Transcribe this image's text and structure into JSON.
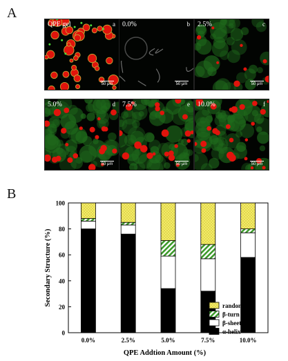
{
  "panels": {
    "top": "A",
    "bottom": "B"
  },
  "micrographs": [
    {
      "label": "QPE gel",
      "tag": "a",
      "scale": "50 μm",
      "kind": "gel"
    },
    {
      "label": "0.0%",
      "tag": "b",
      "scale": "50 μm",
      "kind": "dark"
    },
    {
      "label": "2.5%",
      "tag": "c",
      "scale": "50 μm",
      "kind": "green-sparse"
    },
    {
      "label": "5.0%",
      "tag": "d",
      "scale": "50 μm",
      "kind": "mix"
    },
    {
      "label": "7.5%",
      "tag": "e",
      "scale": "50 μm",
      "kind": "mix"
    },
    {
      "label": "10.0%",
      "tag": "f",
      "scale": "50 μm",
      "kind": "mix-dense"
    }
  ],
  "chart_data": {
    "type": "bar",
    "stacked": true,
    "categories": [
      "0.0%",
      "2.5%",
      "5.0%",
      "7.5%",
      "10.0%"
    ],
    "xlabel": "QPE Addtion Amount (%)",
    "ylabel": "Secondary Structure (%)",
    "ylim": [
      0,
      100
    ],
    "yticks": [
      0,
      20,
      40,
      60,
      80,
      100
    ],
    "legend_position": "bottom-right",
    "series": [
      {
        "name": "α-helix",
        "values": [
          80,
          76,
          34,
          32,
          58
        ],
        "color": "#000000"
      },
      {
        "name": "β-sheet",
        "values": [
          6,
          7,
          25,
          25,
          19
        ],
        "color": "#ffffff"
      },
      {
        "name": "β-turn",
        "values": [
          2,
          2,
          12,
          11,
          3
        ],
        "color": "#6abf3a",
        "pattern": "hatch"
      },
      {
        "name": "random coil",
        "values": [
          12,
          15,
          29,
          32,
          20
        ],
        "color": "#f3ef6a",
        "pattern": "cross"
      }
    ]
  }
}
